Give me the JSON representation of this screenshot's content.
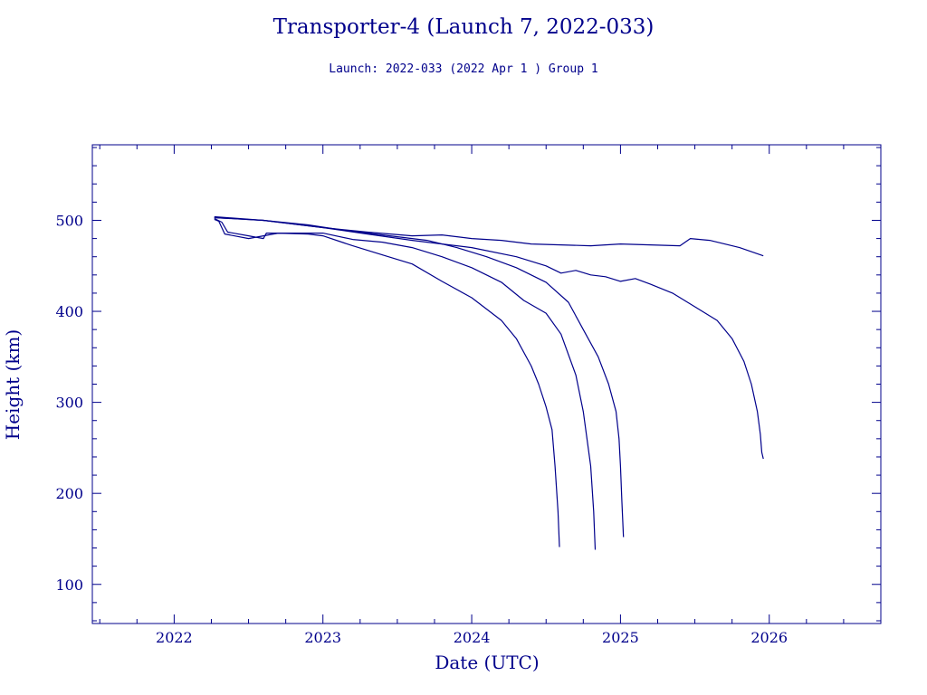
{
  "chart_data": {
    "type": "line",
    "title": "Transporter-4 (Launch 7, 2022-033)",
    "subtitle": "Launch: 2022-033  (2022 Apr  1 )  Group 1",
    "xlabel": "Date (UTC)",
    "ylabel": "Height (km)",
    "xlim": [
      2021.45,
      2026.75
    ],
    "ylim": [
      57,
      583
    ],
    "xticks": [
      2022,
      2023,
      2024,
      2025,
      2026
    ],
    "yticks": [
      100,
      200,
      300,
      400,
      500
    ],
    "grid": false,
    "color": "#00008b",
    "series": [
      {
        "x": [
          2022.27,
          2022.3,
          2022.34,
          2022.5,
          2022.7,
          2022.9,
          2023.0,
          2023.2,
          2023.4,
          2023.6,
          2023.8,
          2024.0,
          2024.2,
          2024.3,
          2024.4,
          2024.45,
          2024.5,
          2024.54,
          2024.56,
          2024.58,
          2024.59
        ],
        "y": [
          501,
          499,
          485,
          480,
          486,
          485,
          483,
          472,
          462,
          452,
          433,
          415,
          390,
          370,
          340,
          320,
          295,
          270,
          230,
          180,
          141
        ]
      },
      {
        "x": [
          2022.27,
          2022.32,
          2022.36,
          2022.5,
          2022.6,
          2022.62,
          2022.8,
          2023.0,
          2023.2,
          2023.4,
          2023.6,
          2023.8,
          2024.0,
          2024.2,
          2024.35,
          2024.5,
          2024.6,
          2024.7,
          2024.75,
          2024.8,
          2024.82,
          2024.83
        ],
        "y": [
          502,
          498,
          487,
          483,
          480,
          486,
          486,
          486,
          479,
          476,
          470,
          460,
          448,
          432,
          412,
          398,
          375,
          330,
          290,
          230,
          180,
          138
        ]
      },
      {
        "x": [
          2022.27,
          2022.6,
          2022.9,
          2023.1,
          2023.3,
          2023.5,
          2023.7,
          2023.9,
          2024.1,
          2024.3,
          2024.5,
          2024.65,
          2024.75,
          2024.85,
          2024.92,
          2024.97,
          2024.99,
          2025.0,
          2025.01,
          2025.02
        ],
        "y": [
          503,
          500,
          495,
          490,
          486,
          482,
          478,
          470,
          460,
          448,
          432,
          410,
          380,
          350,
          320,
          290,
          260,
          230,
          190,
          152
        ]
      },
      {
        "x": [
          2022.27,
          2022.6,
          2023.0,
          2023.3,
          2023.6,
          2023.8,
          2024.0,
          2024.3,
          2024.5,
          2024.6,
          2024.7,
          2024.8,
          2024.9,
          2025.0,
          2025.1,
          2025.2,
          2025.35,
          2025.5,
          2025.65,
          2025.75,
          2025.83,
          2025.88,
          2025.92,
          2025.94,
          2025.95,
          2025.96
        ],
        "y": [
          503,
          500,
          492,
          485,
          478,
          474,
          470,
          460,
          450,
          442,
          445,
          440,
          438,
          433,
          436,
          430,
          420,
          405,
          390,
          370,
          345,
          320,
          290,
          265,
          245,
          238
        ]
      },
      {
        "x": [
          2022.27,
          2022.6,
          2023.0,
          2023.3,
          2023.6,
          2023.8,
          2024.0,
          2024.2,
          2024.4,
          2024.6,
          2024.8,
          2025.0,
          2025.2,
          2025.4,
          2025.47,
          2025.6,
          2025.8,
          2025.96
        ],
        "y": [
          504,
          500,
          492,
          487,
          483,
          484,
          480,
          478,
          474,
          473,
          472,
          474,
          473,
          472,
          480,
          478,
          470,
          461
        ]
      }
    ]
  }
}
